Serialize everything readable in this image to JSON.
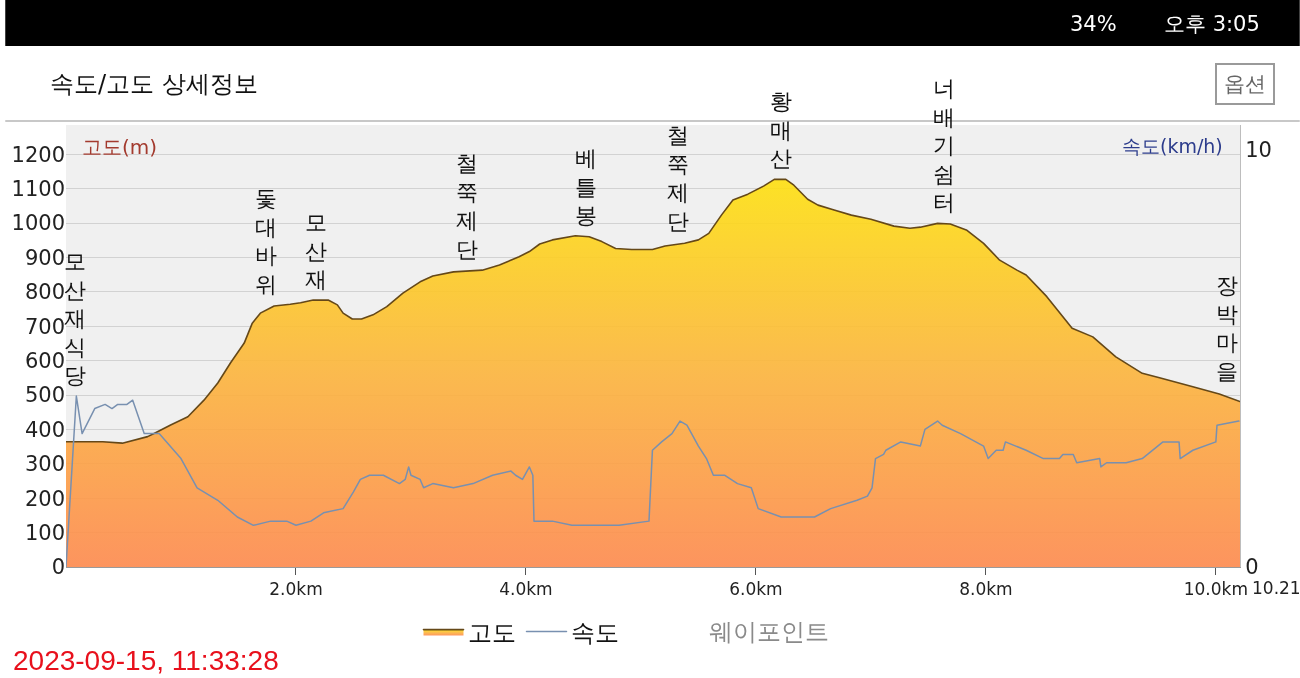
{
  "chart_data": {
    "type": "area",
    "title": "속도/고도 상세정보",
    "ylabel": "고도(m)",
    "y2label": "속도(km/h)",
    "xlim": [
      0,
      10.21
    ],
    "xticks": [
      {
        "value": 2,
        "label": "2.0km"
      },
      {
        "value": 4,
        "label": "4.0km"
      },
      {
        "value": 6,
        "label": "6.0km"
      },
      {
        "value": 8,
        "label": "8.0km"
      },
      {
        "value": 10,
        "label": "10.0km"
      }
    ],
    "ylim": [
      0,
      1285
    ],
    "yticks": [
      0,
      100,
      200,
      300,
      400,
      500,
      600,
      700,
      800,
      900,
      1000,
      1100,
      1200
    ],
    "y2lim": [
      0,
      10.6
    ],
    "y2ticks": [
      0,
      10
    ],
    "grid": "y",
    "legend": "bottom",
    "series": [
      {
        "name": "고도",
        "color": "#fcb43c",
        "x": [
          0,
          0.32,
          0.49,
          0.71,
          0.77,
          0.91,
          1.06,
          1.2,
          1.32,
          1.43,
          1.55,
          1.62,
          1.69,
          1.81,
          1.95,
          2.04,
          2.15,
          2.28,
          2.36,
          2.41,
          2.49,
          2.57,
          2.67,
          2.79,
          2.93,
          3.08,
          3.19,
          3.37,
          3.62,
          3.77,
          3.94,
          4.03,
          4.12,
          4.23,
          4.43,
          4.55,
          4.66,
          4.78,
          4.92,
          5.1,
          5.21,
          5.38,
          5.5,
          5.59,
          5.7,
          5.8,
          5.93,
          6.07,
          6.16,
          6.26,
          6.33,
          6.45,
          6.54,
          6.68,
          6.83,
          7.0,
          7.2,
          7.34,
          7.43,
          7.58,
          7.69,
          7.83,
          7.98,
          8.12,
          8.27,
          8.35,
          8.53,
          8.75,
          8.93,
          9.13,
          9.36,
          9.51,
          9.8,
          10.03,
          10.21
        ],
        "values": [
          364,
          364,
          360,
          379,
          389,
          413,
          437,
          485,
          535,
          593,
          651,
          709,
          738,
          759,
          764,
          768,
          776,
          776,
          762,
          738,
          721,
          721,
          733,
          757,
          796,
          829,
          846,
          858,
          863,
          878,
          902,
          917,
          939,
          951,
          963,
          960,
          946,
          926,
          923,
          923,
          933,
          941,
          951,
          970,
          1023,
          1067,
          1084,
          1108,
          1127,
          1127,
          1110,
          1069,
          1052,
          1038,
          1023,
          1011,
          991,
          985,
          988,
          999,
          997,
          980,
          941,
          892,
          863,
          849,
          786,
          694,
          669,
          611,
          563,
          550,
          524,
          503,
          481
        ]
      },
      {
        "name": "속도",
        "type": "line",
        "axis": "y2",
        "color": "#7890b0",
        "x": [
          0,
          0.09,
          0.14,
          0.25,
          0.34,
          0.4,
          0.45,
          0.53,
          0.58,
          0.68,
          0.81,
          1.0,
          1.14,
          1.32,
          1.49,
          1.63,
          1.78,
          1.92,
          2.0,
          2.13,
          2.24,
          2.41,
          2.5,
          2.56,
          2.64,
          2.76,
          2.9,
          2.95,
          2.98,
          3.0,
          3.08,
          3.11,
          3.19,
          3.37,
          3.54,
          3.71,
          3.87,
          3.91,
          3.97,
          4.03,
          4.06,
          4.07,
          4.23,
          4.4,
          4.81,
          5.07,
          5.1,
          5.18,
          5.27,
          5.34,
          5.4,
          5.5,
          5.57,
          5.63,
          5.73,
          5.84,
          5.96,
          6.02,
          6.22,
          6.51,
          6.65,
          6.88,
          6.97,
          7.01,
          7.04,
          7.11,
          7.13,
          7.26,
          7.43,
          7.47,
          7.58,
          7.62,
          7.78,
          7.98,
          8.02,
          8.09,
          8.15,
          8.17,
          8.35,
          8.5,
          8.64,
          8.67,
          8.76,
          8.79,
          8.99,
          9.0,
          9.05,
          9.22,
          9.36,
          9.54,
          9.68,
          9.69,
          9.8,
          10.0,
          10.01,
          10.2
        ],
        "values": [
          0,
          4.1,
          3.2,
          3.8,
          3.9,
          3.8,
          3.9,
          3.9,
          4.0,
          3.2,
          3.2,
          2.6,
          1.9,
          1.6,
          1.2,
          1.0,
          1.1,
          1.1,
          1.0,
          1.1,
          1.3,
          1.4,
          1.8,
          2.1,
          2.2,
          2.2,
          2.0,
          2.1,
          2.4,
          2.2,
          2.1,
          1.9,
          2.0,
          1.9,
          2.0,
          2.2,
          2.3,
          2.2,
          2.1,
          2.4,
          2.2,
          1.1,
          1.1,
          1.0,
          1.0,
          1.1,
          2.8,
          3.0,
          3.2,
          3.5,
          3.4,
          2.9,
          2.6,
          2.2,
          2.2,
          2.0,
          1.9,
          1.4,
          1.2,
          1.2,
          1.4,
          1.6,
          1.7,
          1.9,
          2.6,
          2.7,
          2.8,
          3.0,
          2.9,
          3.3,
          3.5,
          3.4,
          3.2,
          2.9,
          2.6,
          2.8,
          2.8,
          3.0,
          2.8,
          2.6,
          2.6,
          2.7,
          2.7,
          2.5,
          2.6,
          2.4,
          2.5,
          2.5,
          2.6,
          3.0,
          3.0,
          2.6,
          2.8,
          3.0,
          3.4,
          3.5
        ]
      }
    ],
    "annotations": [
      "10.21",
      "웨이포인트",
      "2023-09-15, 11:33:28",
      "옵션",
      "34%",
      "오후 3:05",
      {
        "text": "모산재식당",
        "x": 0.08,
        "y": 364
      },
      {
        "text": "돛대바위",
        "x": 1.74,
        "y": 750
      },
      {
        "text": "모산재",
        "x": 2.17,
        "y": 776
      },
      {
        "text": "철쭉제단",
        "x": 3.49,
        "y": 860
      },
      {
        "text": "베틀봉",
        "x": 4.52,
        "y": 962
      },
      {
        "text": "철쭉제단",
        "x": 5.32,
        "y": 938
      },
      {
        "text": "황매산",
        "x": 6.22,
        "y": 1127
      },
      {
        "text": "너배기쉼터",
        "x": 7.64,
        "y": 998
      },
      {
        "text": "장박마을",
        "x": 10.1,
        "y": 495
      }
    ]
  }
}
